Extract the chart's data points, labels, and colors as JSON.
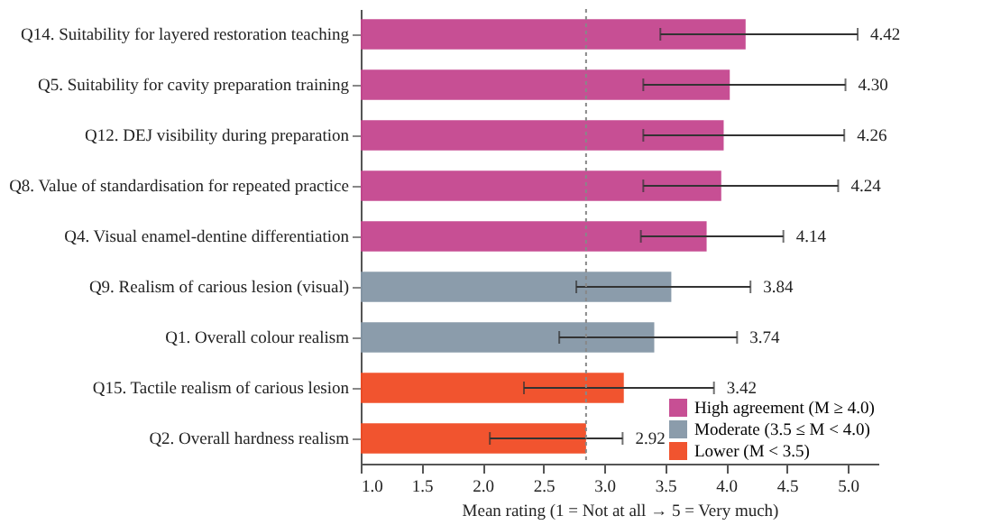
{
  "chart_data": {
    "type": "bar",
    "orientation": "horizontal",
    "xlabel": "Mean rating (1 = Not at all → 5 = Very much)",
    "categories": [
      "Q14. Suitability for layered restoration teaching",
      "Q5. Suitability for cavity preparation training",
      "Q12. DEJ visibility during preparation",
      "Q8. Value of standardisation for repeated practice",
      "Q4. Visual enamel-dentine differentiation",
      "Q9. Realism of carious lesion (visual)",
      "Q1. Overall colour realism",
      "Q15. Tactile realism of carious lesion",
      "Q2. Overall hardness realism"
    ],
    "series": [
      {
        "name": "High agreement (M ≥ 4.0)",
        "color": "#c4468e",
        "values": [
          4.16,
          4.03,
          3.98,
          3.96,
          3.84,
          null,
          null,
          null,
          null
        ],
        "errors": [
          [
            3.46,
            5.08
          ],
          [
            3.32,
            4.98
          ],
          [
            3.32,
            4.97
          ],
          [
            3.32,
            4.92
          ],
          [
            3.3,
            4.47
          ],
          null,
          null,
          null,
          null
        ]
      },
      {
        "name": "Moderate (3.5 ≤ M < 4.0)",
        "color": "#8597a6",
        "values": [
          null,
          null,
          null,
          null,
          null,
          3.55,
          3.41,
          null,
          null
        ],
        "errors": [
          null,
          null,
          null,
          null,
          null,
          [
            2.77,
            4.2
          ],
          [
            2.63,
            4.09
          ],
          null,
          null
        ]
      },
      {
        "name": "Lower (M < 3.5)",
        "color": "#f04b24",
        "values": [
          null,
          null,
          null,
          null,
          null,
          null,
          null,
          3.16,
          2.85
        ],
        "errors": [
          null,
          null,
          null,
          null,
          null,
          null,
          null,
          [
            2.34,
            3.9
          ],
          [
            2.06,
            3.15
          ]
        ]
      }
    ],
    "annotations": [
      {
        "text": "4.42",
        "x": 5.08,
        "y": "Q14. Suitability for layered restoration teaching"
      },
      {
        "text": "4.30",
        "x": 4.98,
        "y": "Q5. Suitability for cavity preparation training"
      },
      {
        "text": "4.26",
        "x": 4.97,
        "y": "Q12. DEJ visibility during preparation"
      },
      {
        "text": "4.24",
        "x": 4.92,
        "y": "Q8. Value of standardisation for repeated practice"
      },
      {
        "text": "4.14",
        "x": 4.47,
        "y": "Q4. Visual enamel-dentine differentiation"
      },
      {
        "text": "3.84",
        "x": 4.2,
        "y": "Q9. Realism of carious lesion (visual)"
      },
      {
        "text": "3.74",
        "x": 4.09,
        "y": "Q1. Overall colour realism"
      },
      {
        "text": "3.42",
        "x": 3.9,
        "y": "Q15. Tactile realism of carious lesion"
      },
      {
        "text": "2.92",
        "x": 3.15,
        "y": "Q2. Overall hardness realism"
      }
    ],
    "xlim": [
      1.0,
      5.25
    ],
    "xticks": [
      {
        "value": 1,
        "label": "1.0"
      },
      {
        "value": 1.5,
        "label": "1.5"
      },
      {
        "value": 2,
        "label": "2.0"
      },
      {
        "value": 2.5,
        "label": "2.5"
      },
      {
        "value": 3,
        "label": "3.0"
      },
      {
        "value": 3.5,
        "label": "3.5"
      },
      {
        "value": 4,
        "label": "4.0"
      },
      {
        "value": 4.5,
        "label": "4.5"
      },
      {
        "value": 5,
        "label": "5.0"
      }
    ],
    "ref_lines": [
      {
        "axis": "x",
        "value": 2.85,
        "color": "#888888",
        "line_style": "dotted"
      }
    ],
    "grid": false,
    "legend": "bottom right"
  }
}
